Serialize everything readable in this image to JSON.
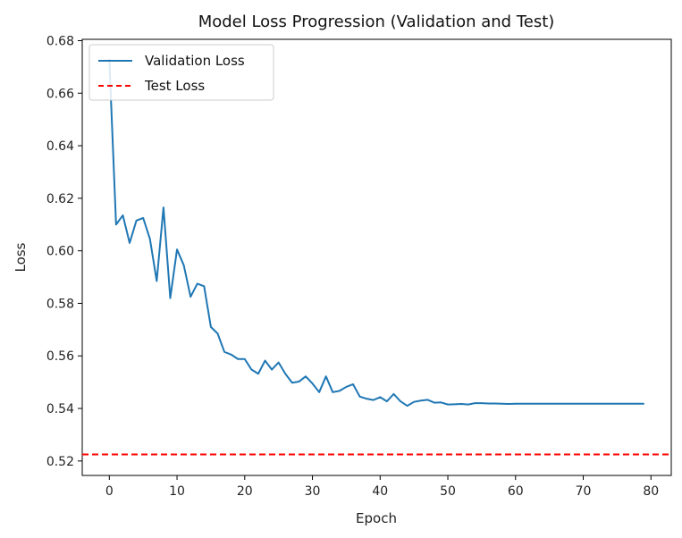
{
  "chart_data": {
    "type": "line",
    "title": "Model Loss Progression (Validation and Test)",
    "xlabel": "Epoch",
    "ylabel": "Loss",
    "xlim": [
      -4,
      83
    ],
    "ylim": [
      0.5145,
      0.6805
    ],
    "xticks": [
      0,
      10,
      20,
      30,
      40,
      50,
      60,
      70,
      80
    ],
    "yticks": [
      0.52,
      0.54,
      0.56,
      0.58,
      0.6,
      0.62,
      0.64,
      0.66,
      0.68
    ],
    "ytick_labels": [
      "0.52",
      "0.54",
      "0.56",
      "0.58",
      "0.60",
      "0.62",
      "0.64",
      "0.66",
      "0.68"
    ],
    "grid": false,
    "legend": {
      "position": "top-left"
    },
    "series": [
      {
        "name": "Validation Loss",
        "color": "#1f77b4",
        "style": "solid",
        "x": [
          0,
          1,
          2,
          3,
          4,
          5,
          6,
          7,
          8,
          9,
          10,
          11,
          12,
          13,
          14,
          15,
          16,
          17,
          18,
          19,
          20,
          21,
          22,
          23,
          24,
          25,
          26,
          27,
          28,
          29,
          30,
          31,
          32,
          33,
          34,
          35,
          36,
          37,
          38,
          39,
          40,
          41,
          42,
          43,
          44,
          45,
          46,
          47,
          48,
          49,
          50,
          51,
          52,
          53,
          54,
          55,
          56,
          57,
          58,
          59,
          60,
          61,
          62,
          63,
          64,
          65,
          66,
          67,
          68,
          69,
          70,
          71,
          72,
          73,
          74,
          75,
          76,
          77,
          78,
          79
        ],
        "values": [
          0.673,
          0.61,
          0.6135,
          0.603,
          0.6115,
          0.6125,
          0.6045,
          0.5885,
          0.6165,
          0.582,
          0.6005,
          0.5945,
          0.5825,
          0.5875,
          0.5865,
          0.571,
          0.5685,
          0.5615,
          0.5605,
          0.5588,
          0.5588,
          0.5548,
          0.5532,
          0.5582,
          0.5548,
          0.5575,
          0.5532,
          0.5498,
          0.5502,
          0.5522,
          0.5495,
          0.5462,
          0.5522,
          0.5462,
          0.5467,
          0.5482,
          0.5492,
          0.5445,
          0.5437,
          0.5432,
          0.5443,
          0.5427,
          0.5455,
          0.5427,
          0.541,
          0.5425,
          0.543,
          0.5433,
          0.5422,
          0.5423,
          0.5415,
          0.5416,
          0.5417,
          0.5415,
          0.542,
          0.542,
          0.5419,
          0.5419,
          0.5418,
          0.5417,
          0.5418,
          0.5418,
          0.5418,
          0.5418,
          0.5418,
          0.5418,
          0.5418,
          0.5418,
          0.5418,
          0.5418,
          0.5418,
          0.5418,
          0.5418,
          0.5418,
          0.5418,
          0.5418,
          0.5418,
          0.5418,
          0.5418,
          0.5418
        ]
      },
      {
        "name": "Test Loss",
        "color": "#ff0000",
        "style": "dashed",
        "constant": 0.5225
      }
    ]
  }
}
